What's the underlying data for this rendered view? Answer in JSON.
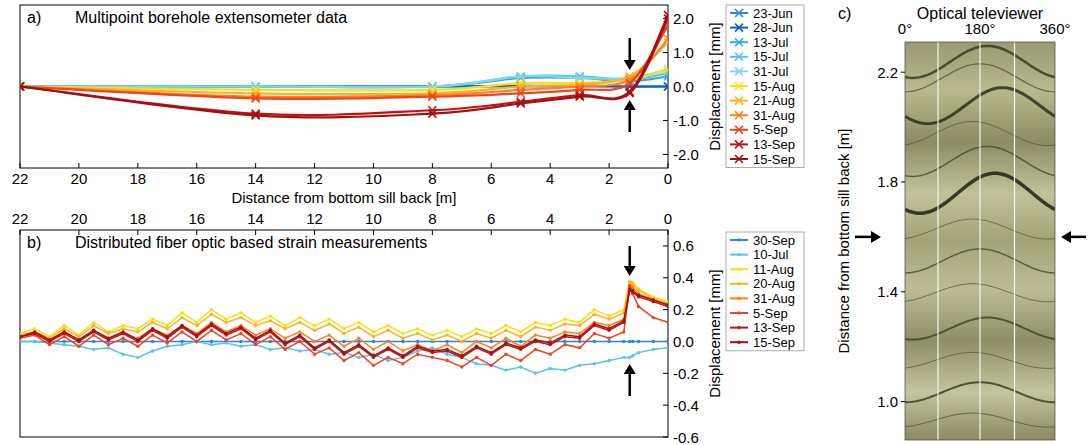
{
  "chart_data": [
    {
      "type": "line",
      "panel": "a)",
      "title": "Multipoint borehole extensometer data",
      "x_label": "Distance from bottom sill back [m]",
      "y_label": "Displacement [mm]",
      "x": [
        22,
        14,
        8,
        5,
        3,
        1.3,
        0
      ],
      "xlim": [
        22,
        0
      ],
      "xticks": [
        22,
        20,
        18,
        16,
        14,
        12,
        10,
        8,
        6,
        4,
        2,
        0
      ],
      "ylim": [
        -2.4,
        2.4
      ],
      "yticks": [
        {
          "value": 2,
          "label": "2.0"
        },
        {
          "value": 1,
          "label": "1.0"
        },
        {
          "value": 0,
          "label": "0.0"
        },
        {
          "value": -1,
          "label": "-1.0"
        },
        {
          "value": -2,
          "label": "-2.0"
        }
      ],
      "marker": "x",
      "line_style": "smooth",
      "legend": "right",
      "grid": false,
      "arrow_at": 1.3,
      "series": [
        {
          "name": "23-Jun",
          "color": "#2f86d8",
          "values": [
            0,
            0,
            0,
            0,
            0,
            0,
            0
          ]
        },
        {
          "name": "28-Jun",
          "color": "#1060c0",
          "values": [
            0,
            0,
            0,
            0.02,
            0.02,
            0,
            0
          ]
        },
        {
          "name": "13-Jul",
          "color": "#33aadd",
          "values": [
            0,
            0,
            0,
            0.25,
            0.25,
            0.15,
            0.3
          ]
        },
        {
          "name": "15-Jul",
          "color": "#55c4ee",
          "values": [
            0,
            0,
            0,
            0.3,
            0.3,
            0.2,
            0.4
          ]
        },
        {
          "name": "31-Jul",
          "color": "#7fd6f2",
          "values": [
            0,
            0,
            0,
            0.3,
            0.25,
            0.25,
            0.5
          ]
        },
        {
          "name": "15-Aug",
          "color": "#f2e21a",
          "values": [
            0,
            -0.1,
            -0.1,
            0.1,
            0.1,
            0.2,
            0.5
          ]
        },
        {
          "name": "21-Aug",
          "color": "#ffb21e",
          "values": [
            0,
            -0.2,
            -0.2,
            0,
            0.05,
            0.3,
            1.3
          ]
        },
        {
          "name": "31-Aug",
          "color": "#ff8020",
          "values": [
            0,
            -0.3,
            -0.25,
            -0.1,
            0,
            0.2,
            1.4
          ]
        },
        {
          "name": "5-Sep",
          "color": "#ee4422",
          "values": [
            0,
            -0.35,
            -0.3,
            -0.2,
            -0.1,
            0.1,
            1.8
          ]
        },
        {
          "name": "13-Sep",
          "color": "#c81010",
          "values": [
            0,
            -0.8,
            -0.7,
            -0.45,
            -0.25,
            -0.2,
            2.0
          ]
        },
        {
          "name": "15-Sep",
          "color": "#a01010",
          "values": [
            0,
            -0.85,
            -0.8,
            -0.5,
            -0.3,
            -0.15,
            2.1
          ]
        }
      ]
    },
    {
      "type": "line",
      "panel": "b)",
      "title": "Distributed fiber optic based strain measurements",
      "y_label": "Displacement [mm]",
      "x": [
        22,
        21.5,
        21,
        20.5,
        20,
        19.5,
        19,
        18.5,
        18,
        17.5,
        17,
        16.5,
        16,
        15.5,
        15,
        14.5,
        14,
        13.5,
        13,
        12.5,
        12,
        11.5,
        11,
        10.5,
        10,
        9.5,
        9,
        8.5,
        8,
        7.5,
        7,
        6.5,
        6,
        5.5,
        5,
        4.5,
        4,
        3.5,
        3,
        2.5,
        2,
        1.5,
        1.3,
        1.2,
        1,
        0.5,
        0
      ],
      "xlim": [
        22,
        0
      ],
      "xticks": [
        22,
        20,
        18,
        16,
        14,
        12,
        10,
        8,
        6,
        4,
        2,
        0
      ],
      "ylim": [
        -0.6,
        0.7
      ],
      "yticks": [
        0.6,
        0.4,
        0.2,
        {
          "value": 0,
          "label": "0.0"
        },
        -0.2,
        -0.4,
        -0.6
      ],
      "marker": "circle",
      "line_style": "solid",
      "legend": "right",
      "grid": false,
      "arrow_at": 1.3,
      "series": [
        {
          "name": "30-Sep",
          "color": "#2f86d8",
          "values": [
            0,
            0,
            0,
            0,
            0,
            0,
            0,
            0,
            0,
            0,
            0,
            0,
            0,
            0,
            0,
            0,
            0,
            0,
            0,
            0,
            0,
            0,
            0,
            0,
            0,
            0,
            0,
            0,
            0,
            0,
            0,
            0,
            0,
            0,
            0,
            0,
            0,
            0,
            0,
            0,
            0,
            0,
            0,
            0,
            0,
            0,
            0
          ]
        },
        {
          "name": "10-Jul",
          "color": "#55c4ee",
          "values": [
            0,
            0,
            -0.01,
            -0.02,
            -0.03,
            -0.05,
            -0.04,
            -0.08,
            -0.1,
            -0.06,
            -0.03,
            -0.02,
            0,
            -0.02,
            -0.01,
            -0.03,
            -0.02,
            -0.05,
            -0.04,
            -0.06,
            -0.05,
            -0.08,
            -0.07,
            -0.1,
            -0.08,
            -0.12,
            -0.1,
            -0.06,
            -0.04,
            -0.08,
            -0.1,
            -0.14,
            -0.15,
            -0.18,
            -0.16,
            -0.2,
            -0.17,
            -0.18,
            -0.15,
            -0.14,
            -0.12,
            -0.1,
            -0.1,
            -0.09,
            -0.07,
            -0.05,
            -0.04
          ]
        },
        {
          "name": "11-Aug",
          "color": "#f2e21a",
          "values": [
            0.05,
            0.08,
            0.03,
            0.1,
            0.04,
            0.12,
            0.06,
            0.1,
            0.08,
            0.14,
            0.1,
            0.18,
            0.12,
            0.2,
            0.14,
            0.18,
            0.12,
            0.16,
            0.1,
            0.15,
            0.1,
            0.14,
            0.08,
            0.12,
            0.06,
            0.1,
            0.05,
            0.08,
            0.04,
            0.07,
            0.03,
            0.08,
            0.05,
            0.1,
            0.06,
            0.12,
            0.1,
            0.14,
            0.12,
            0.2,
            0.16,
            0.2,
            0.38,
            0.37,
            0.33,
            0.28,
            0.25
          ]
        },
        {
          "name": "20-Aug",
          "color": "#ffb21e",
          "values": [
            0.04,
            0.06,
            0.02,
            0.08,
            0.03,
            0.1,
            0.05,
            0.08,
            0.06,
            0.12,
            0.08,
            0.15,
            0.1,
            0.17,
            0.12,
            0.15,
            0.1,
            0.13,
            0.08,
            0.12,
            0.07,
            0.11,
            0.05,
            0.09,
            0.03,
            0.07,
            0.02,
            0.05,
            0.01,
            0.04,
            0,
            0.05,
            0.02,
            0.07,
            0.03,
            0.09,
            0.07,
            0.11,
            0.1,
            0.17,
            0.14,
            0.18,
            0.37,
            0.36,
            0.32,
            0.27,
            0.24
          ]
        },
        {
          "name": "31-Aug",
          "color": "#ff8020",
          "values": [
            0.03,
            0.05,
            0,
            0.06,
            0.01,
            0.07,
            0.02,
            0.05,
            0.02,
            0.08,
            0.04,
            0.1,
            0.05,
            0.12,
            0.06,
            0.1,
            0.04,
            0.08,
            0.02,
            0.06,
            0,
            0.04,
            -0.03,
            0.02,
            -0.05,
            0,
            -0.06,
            -0.02,
            -0.06,
            -0.02,
            -0.07,
            0,
            -0.04,
            0.02,
            -0.03,
            0.04,
            0.02,
            0.06,
            0.05,
            0.12,
            0.1,
            0.14,
            0.35,
            0.34,
            0.3,
            0.26,
            0.23
          ]
        },
        {
          "name": "5-Sep",
          "color": "#ee4422",
          "values": [
            0.02,
            0.04,
            -0.02,
            0.03,
            -0.03,
            0.04,
            -0.02,
            0.02,
            -0.03,
            0.04,
            -0.01,
            0.06,
            0,
            0.07,
            0.01,
            0.05,
            -0.02,
            0.03,
            -0.05,
            0,
            -0.08,
            -0.04,
            -0.12,
            -0.07,
            -0.15,
            -0.1,
            -0.14,
            -0.08,
            -0.1,
            -0.12,
            -0.16,
            -0.1,
            -0.15,
            -0.08,
            -0.12,
            -0.05,
            -0.08,
            -0.02,
            -0.04,
            0.05,
            0.02,
            0.06,
            0.35,
            0.3,
            0.22,
            0.15,
            0.12
          ]
        },
        {
          "name": "13-Sep",
          "color": "#c81010",
          "values": [
            0.03,
            0.05,
            0,
            0.05,
            0,
            0.06,
            0.01,
            0.05,
            0,
            0.07,
            0.02,
            0.09,
            0.03,
            0.1,
            0.04,
            0.08,
            0.01,
            0.06,
            -0.02,
            0.03,
            -0.05,
            0,
            -0.08,
            -0.03,
            -0.1,
            -0.05,
            -0.1,
            -0.04,
            -0.07,
            -0.06,
            -0.1,
            -0.04,
            -0.08,
            -0.02,
            -0.05,
            0,
            -0.02,
            0.03,
            0.02,
            0.1,
            0.07,
            0.12,
            0.32,
            0.31,
            0.28,
            0.25,
            0.22
          ]
        },
        {
          "name": "15-Sep",
          "color": "#a01010",
          "values": [
            0.03,
            0.06,
            0.01,
            0.06,
            0.01,
            0.07,
            0.02,
            0.06,
            0.01,
            0.08,
            0.03,
            0.1,
            0.04,
            0.11,
            0.05,
            0.09,
            0.02,
            0.07,
            -0.01,
            0.04,
            -0.04,
            0.01,
            -0.07,
            -0.02,
            -0.09,
            -0.04,
            -0.09,
            -0.03,
            -0.06,
            -0.05,
            -0.09,
            -0.03,
            -0.07,
            -0.01,
            -0.04,
            0.01,
            -0.01,
            0.04,
            0.03,
            0.11,
            0.08,
            0.13,
            0.33,
            0.32,
            0.29,
            0.26,
            0.23
          ]
        }
      ]
    },
    {
      "type": "image",
      "panel": "c)",
      "title": "Optical televiewer",
      "y_label": "Distance from bottom sill back [m]",
      "xlim": [
        0,
        360
      ],
      "xticks": [
        {
          "value": 0,
          "label": "0°"
        },
        {
          "value": 180,
          "label": "180°"
        },
        {
          "value": 360,
          "label": "360°"
        }
      ],
      "ylim": [
        2.31,
        0.86
      ],
      "yticks": [
        2.2,
        1.8,
        1.4,
        {
          "value": 1,
          "label": "1.0"
        }
      ],
      "arrow_at": 1.6
    }
  ]
}
